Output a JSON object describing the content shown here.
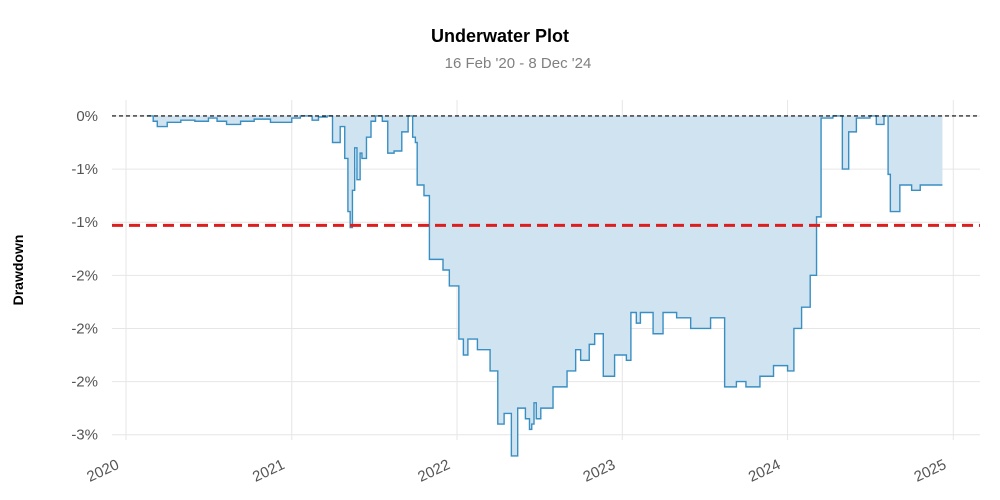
{
  "chart_data": {
    "type": "area",
    "title": "Underwater Plot",
    "subtitle": "16 Feb '20 -  8 Dec '24",
    "ylabel": "Drawdown",
    "xlabel": "",
    "x_ticks": [
      "2020",
      "2021",
      "2022",
      "2023",
      "2024",
      "2025"
    ],
    "y_ticks": [
      "0%",
      "-1%",
      "-1%",
      "-2%",
      "-2%",
      "-2%",
      "-3%"
    ],
    "y_tick_values": [
      0,
      -0.5,
      -1.0,
      -1.5,
      -2.0,
      -2.5,
      -3.0
    ],
    "xlim": [
      "2019-12-01",
      "2025-03-01"
    ],
    "ylim": [
      -3.05,
      0.15
    ],
    "grid": true,
    "reference_line": {
      "value": -1.03,
      "style": "dashed",
      "color": "#dd1e1e"
    },
    "zero_line": {
      "value": 0,
      "style": "dashed",
      "color": "#000000"
    },
    "series": [
      {
        "color": "#3a8fc2",
        "fill": "#cfe3f0",
        "x": [
          "2020-02-16",
          "2020-03-01",
          "2020-03-10",
          "2020-04-01",
          "2020-05-01",
          "2020-06-01",
          "2020-07-01",
          "2020-07-20",
          "2020-08-10",
          "2020-09-10",
          "2020-10-10",
          "2020-11-15",
          "2021-01-01",
          "2021-01-20",
          "2021-02-15",
          "2021-03-01",
          "2021-03-20",
          "2021-04-01",
          "2021-04-18",
          "2021-04-28",
          "2021-05-05",
          "2021-05-10",
          "2021-05-15",
          "2021-05-20",
          "2021-05-25",
          "2021-06-01",
          "2021-06-05",
          "2021-06-15",
          "2021-06-25",
          "2021-07-05",
          "2021-07-20",
          "2021-08-01",
          "2021-08-15",
          "2021-09-01",
          "2021-09-15",
          "2021-09-25",
          "2021-10-01",
          "2021-10-05",
          "2021-10-20",
          "2021-11-01",
          "2021-12-01",
          "2021-12-15",
          "2022-01-05",
          "2022-01-15",
          "2022-01-25",
          "2022-02-15",
          "2022-03-15",
          "2022-04-01",
          "2022-04-15",
          "2022-05-01",
          "2022-05-15",
          "2022-06-01",
          "2022-06-10",
          "2022-06-15",
          "2022-06-20",
          "2022-06-25",
          "2022-07-05",
          "2022-08-01",
          "2022-09-01",
          "2022-09-20",
          "2022-10-01",
          "2022-10-20",
          "2022-11-01",
          "2022-11-20",
          "2022-12-15",
          "2023-01-10",
          "2023-01-20",
          "2023-02-01",
          "2023-02-10",
          "2023-03-10",
          "2023-04-01",
          "2023-05-01",
          "2023-06-01",
          "2023-07-15",
          "2023-08-15",
          "2023-09-10",
          "2023-10-01",
          "2023-11-01",
          "2023-12-01",
          "2024-01-01",
          "2024-01-15",
          "2024-02-01",
          "2024-02-20",
          "2024-03-05",
          "2024-03-15",
          "2024-04-10",
          "2024-05-01",
          "2024-05-15",
          "2024-06-01",
          "2024-07-01",
          "2024-07-15",
          "2024-07-25",
          "2024-08-01",
          "2024-08-10",
          "2024-08-15",
          "2024-09-05",
          "2024-10-01",
          "2024-10-20",
          "2024-12-08"
        ],
        "y": [
          0,
          -0.05,
          -0.1,
          -0.06,
          -0.04,
          -0.05,
          -0.02,
          -0.05,
          -0.08,
          -0.05,
          -0.03,
          -0.06,
          -0.02,
          0,
          -0.04,
          -0.01,
          0,
          -0.25,
          -0.1,
          -0.4,
          -0.9,
          -1.05,
          -0.7,
          -0.3,
          -0.6,
          -0.35,
          -0.4,
          -0.2,
          -0.05,
          0,
          -0.05,
          -0.35,
          -0.33,
          -0.15,
          0,
          -0.2,
          -0.25,
          -0.65,
          -0.75,
          -1.35,
          -1.45,
          -1.6,
          -2.1,
          -2.25,
          -2.1,
          -2.2,
          -2.4,
          -2.9,
          -2.8,
          -3.2,
          -2.75,
          -2.85,
          -2.95,
          -2.9,
          -2.7,
          -2.85,
          -2.75,
          -2.55,
          -2.4,
          -2.2,
          -2.3,
          -2.15,
          -2.05,
          -2.45,
          -2.25,
          -2.3,
          -1.85,
          -1.95,
          -1.85,
          -2.05,
          -1.85,
          -1.9,
          -2.0,
          -1.9,
          -2.55,
          -2.5,
          -2.55,
          -2.45,
          -2.35,
          -2.4,
          -2.0,
          -1.8,
          -1.5,
          -0.95,
          -0.02,
          0,
          -0.5,
          -0.15,
          -0.02,
          0,
          -0.08,
          -0.08,
          0,
          -0.55,
          -0.9,
          -0.65,
          -0.7,
          -0.65,
          -0.65
        ]
      }
    ]
  }
}
